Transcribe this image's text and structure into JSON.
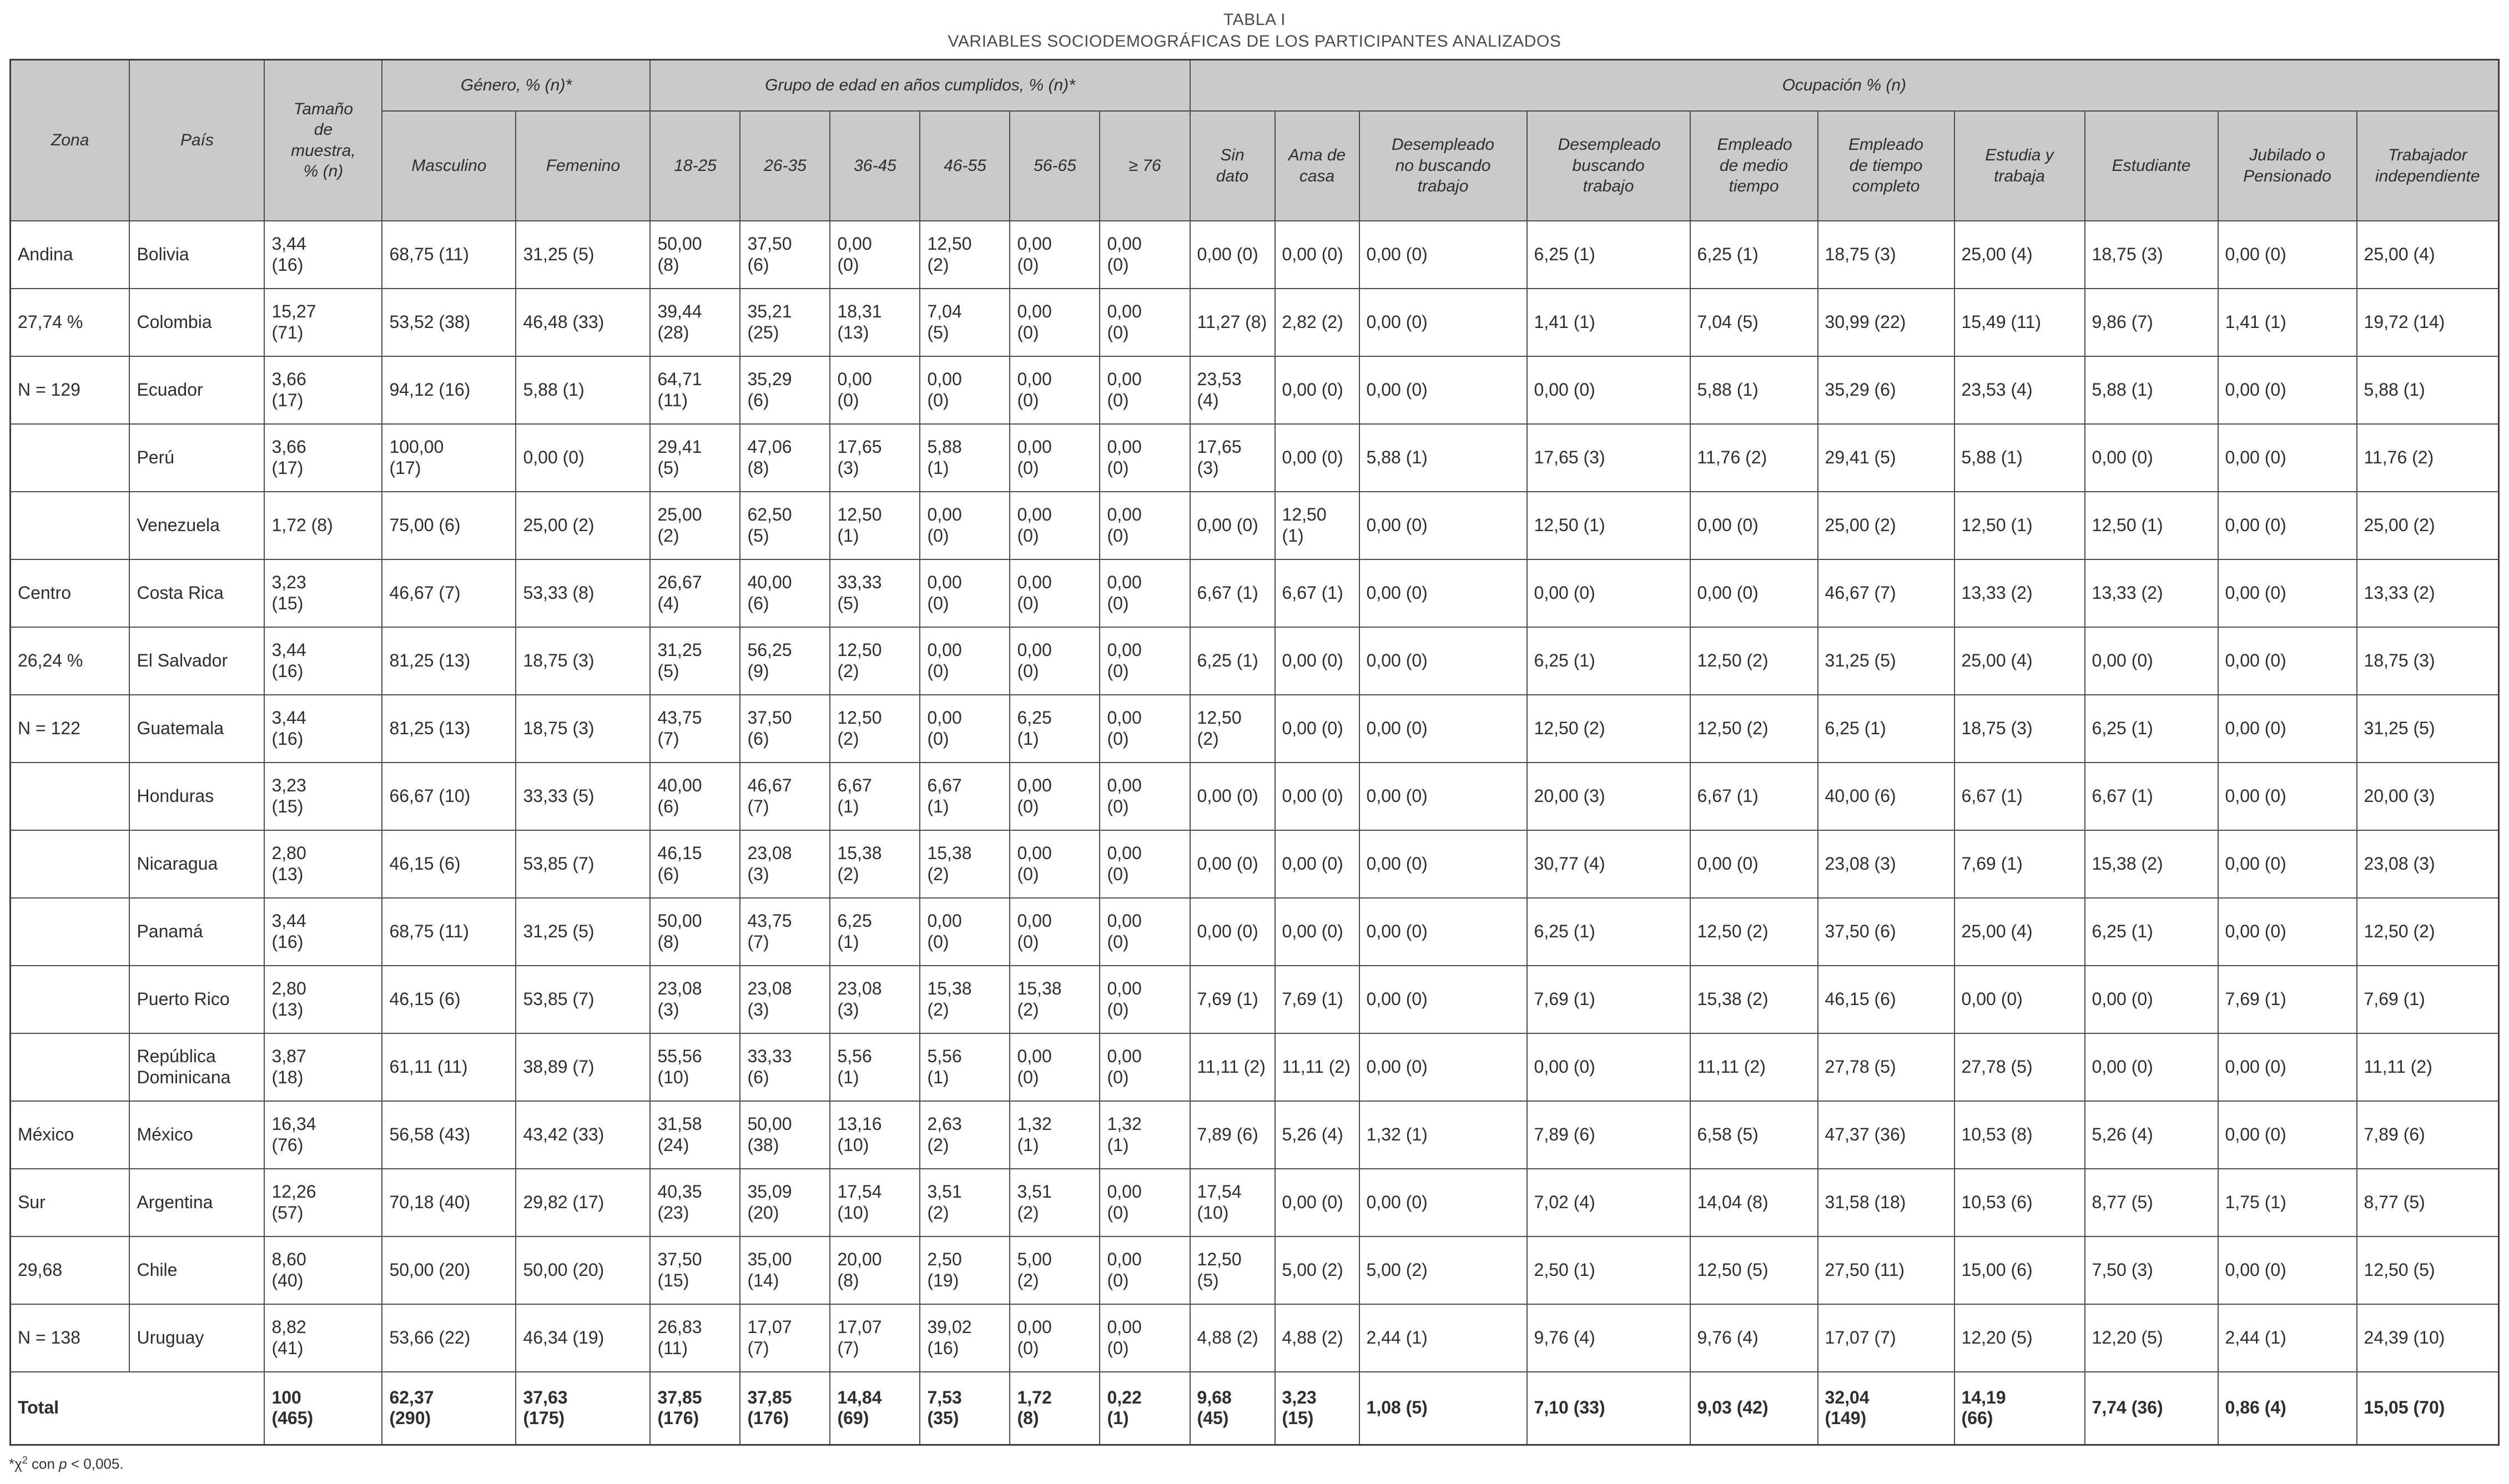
{
  "title": {
    "line1": "TABLA I",
    "line2": "VARIABLES SOCIODEMOGRÁFICAS DE LOS PARTICIPANTES ANALIZADOS"
  },
  "table": {
    "headers": {
      "zona": "Zona",
      "pais": "País",
      "tamano": "Tamaño de muestra, % (n)",
      "genero": "Género, % (n)*",
      "edad": "Grupo de edad en años cumplidos, % (n)*",
      "ocupacion": "Ocupación % (n)"
    },
    "subheaders": [
      "Masculino",
      "Femenino",
      "18-25",
      "26-35",
      "36-45",
      "46-55",
      "56-65",
      "≥ 76",
      "Sin dato",
      "Ama de casa",
      "Desempleado no buscando trabajo",
      "Desempleado buscando trabajo",
      "Empleado de medio tiempo",
      "Empleado de tiempo completo",
      "Estudia y trabaja",
      "Estudiante",
      "Jubilado o Pensionado",
      "Trabajador independiente"
    ],
    "rows": [
      {
        "zona": "Andina",
        "pais": "Bolivia",
        "values": [
          "3,44 (16)",
          "68,75 (11)",
          "31,25 (5)",
          "50,00 (8)",
          "37,50 (6)",
          "0,00 (0)",
          "12,50 (2)",
          "0,00 (0)",
          "0,00 (0)",
          "0,00 (0)",
          "0,00 (0)",
          "0,00 (0)",
          "6,25 (1)",
          "6,25 (1)",
          "18,75 (3)",
          "25,00 (4)",
          "18,75 (3)",
          "0,00 (0)",
          "25,00 (4)"
        ]
      },
      {
        "zona": "27,74 %",
        "pais": "Colombia",
        "values": [
          "15,27 (71)",
          "53,52 (38)",
          "46,48 (33)",
          "39,44 (28)",
          "35,21 (25)",
          "18,31 (13)",
          "7,04 (5)",
          "0,00 (0)",
          "0,00 (0)",
          "11,27 (8)",
          "2,82 (2)",
          "0,00 (0)",
          "1,41 (1)",
          "7,04 (5)",
          "30,99 (22)",
          "15,49 (11)",
          "9,86 (7)",
          "1,41 (1)",
          "19,72 (14)"
        ]
      },
      {
        "zona": "N = 129",
        "pais": "Ecuador",
        "values": [
          "3,66 (17)",
          "94,12 (16)",
          "5,88 (1)",
          "64,71 (11)",
          "35,29 (6)",
          "0,00 (0)",
          "0,00 (0)",
          "0,00 (0)",
          "0,00 (0)",
          "23,53 (4)",
          "0,00 (0)",
          "0,00 (0)",
          "0,00 (0)",
          "5,88 (1)",
          "35,29 (6)",
          "23,53 (4)",
          "5,88 (1)",
          "0,00 (0)",
          "5,88 (1)"
        ]
      },
      {
        "zona": "",
        "pais": "Perú",
        "values": [
          "3,66 (17)",
          "100,00 (17)",
          "0,00 (0)",
          "29,41 (5)",
          "47,06 (8)",
          "17,65 (3)",
          "5,88 (1)",
          "0,00 (0)",
          "0,00 (0)",
          "17,65 (3)",
          "0,00 (0)",
          "5,88 (1)",
          "17,65 (3)",
          "11,76 (2)",
          "29,41 (5)",
          "5,88 (1)",
          "0,00 (0)",
          "0,00 (0)",
          "11,76 (2)"
        ]
      },
      {
        "zona": "",
        "pais": "Venezuela",
        "values": [
          "1,72 (8)",
          "75,00 (6)",
          "25,00 (2)",
          "25,00 (2)",
          "62,50 (5)",
          "12,50 (1)",
          "0,00 (0)",
          "0,00 (0)",
          "0,00 (0)",
          "0,00 (0)",
          "12,50 (1)",
          "0,00 (0)",
          "12,50 (1)",
          "0,00 (0)",
          "25,00 (2)",
          "12,50 (1)",
          "12,50 (1)",
          "0,00 (0)",
          "25,00 (2)"
        ]
      },
      {
        "zona": "Centro",
        "pais": "Costa Rica",
        "values": [
          "3,23 (15)",
          "46,67 (7)",
          "53,33 (8)",
          "26,67 (4)",
          "40,00 (6)",
          "33,33 (5)",
          "0,00 (0)",
          "0,00 (0)",
          "0,00 (0)",
          "6,67 (1)",
          "6,67 (1)",
          "0,00 (0)",
          "0,00 (0)",
          "0,00 (0)",
          "46,67 (7)",
          "13,33 (2)",
          "13,33 (2)",
          "0,00 (0)",
          "13,33 (2)"
        ]
      },
      {
        "zona": "26,24 %",
        "pais": "El Salvador",
        "values": [
          "3,44 (16)",
          "81,25 (13)",
          "18,75 (3)",
          "31,25 (5)",
          "56,25 (9)",
          "12,50 (2)",
          "0,00 (0)",
          "0,00 (0)",
          "0,00 (0)",
          "6,25 (1)",
          "0,00 (0)",
          "0,00 (0)",
          "6,25 (1)",
          "12,50 (2)",
          "31,25 (5)",
          "25,00 (4)",
          "0,00 (0)",
          "0,00 (0)",
          "18,75 (3)"
        ]
      },
      {
        "zona": "N = 122",
        "pais": "Guatemala",
        "values": [
          "3,44 (16)",
          "81,25 (13)",
          "18,75 (3)",
          "43,75 (7)",
          "37,50 (6)",
          "12,50 (2)",
          "0,00 (0)",
          "6,25 (1)",
          "0,00 (0)",
          "12,50 (2)",
          "0,00 (0)",
          "0,00 (0)",
          "12,50 (2)",
          "12,50 (2)",
          "6,25 (1)",
          "18,75 (3)",
          "6,25 (1)",
          "0,00 (0)",
          "31,25 (5)"
        ]
      },
      {
        "zona": "",
        "pais": "Honduras",
        "values": [
          "3,23 (15)",
          "66,67 (10)",
          "33,33 (5)",
          "40,00 (6)",
          "46,67 (7)",
          "6,67 (1)",
          "6,67 (1)",
          "0,00 (0)",
          "0,00 (0)",
          "0,00 (0)",
          "0,00 (0)",
          "0,00 (0)",
          "20,00 (3)",
          "6,67 (1)",
          "40,00 (6)",
          "6,67 (1)",
          "6,67 (1)",
          "0,00 (0)",
          "20,00 (3)"
        ]
      },
      {
        "zona": "",
        "pais": "Nicaragua",
        "values": [
          "2,80 (13)",
          "46,15 (6)",
          "53,85 (7)",
          "46,15 (6)",
          "23,08 (3)",
          "15,38 (2)",
          "15,38 (2)",
          "0,00 (0)",
          "0,00 (0)",
          "0,00 (0)",
          "0,00 (0)",
          "0,00 (0)",
          "30,77 (4)",
          "0,00 (0)",
          "23,08 (3)",
          "7,69 (1)",
          "15,38 (2)",
          "0,00 (0)",
          "23,08 (3)"
        ]
      },
      {
        "zona": "",
        "pais": "Panamá",
        "values": [
          "3,44 (16)",
          "68,75 (11)",
          "31,25 (5)",
          "50,00 (8)",
          "43,75 (7)",
          "6,25 (1)",
          "0,00 (0)",
          "0,00 (0)",
          "0,00 (0)",
          "0,00 (0)",
          "0,00 (0)",
          "0,00 (0)",
          "6,25 (1)",
          "12,50 (2)",
          "37,50 (6)",
          "25,00 (4)",
          "6,25 (1)",
          "0,00 (0)",
          "12,50 (2)"
        ]
      },
      {
        "zona": "",
        "pais": "Puerto Rico",
        "values": [
          "2,80 (13)",
          "46,15 (6)",
          "53,85 (7)",
          "23,08 (3)",
          "23,08 (3)",
          "23,08 (3)",
          "15,38 (2)",
          "15,38 (2)",
          "0,00 (0)",
          "7,69 (1)",
          "7,69 (1)",
          "0,00 (0)",
          "7,69 (1)",
          "15,38 (2)",
          "46,15 (6)",
          "0,00 (0)",
          "0,00 (0)",
          "7,69 (1)",
          "7,69 (1)"
        ]
      },
      {
        "zona": "",
        "pais": "República Dominicana",
        "values": [
          "3,87 (18)",
          "61,11 (11)",
          "38,89 (7)",
          "55,56 (10)",
          "33,33 (6)",
          "5,56 (1)",
          "5,56 (1)",
          "0,00 (0)",
          "0,00 (0)",
          "11,11 (2)",
          "11,11 (2)",
          "0,00 (0)",
          "0,00 (0)",
          "11,11 (2)",
          "27,78 (5)",
          "27,78 (5)",
          "0,00 (0)",
          "0,00 (0)",
          "11,11 (2)"
        ]
      },
      {
        "zona": "México",
        "pais": "México",
        "values": [
          "16,34 (76)",
          "56,58 (43)",
          "43,42 (33)",
          "31,58 (24)",
          "50,00 (38)",
          "13,16 (10)",
          "2,63 (2)",
          "1,32 (1)",
          "1,32 (1)",
          "7,89 (6)",
          "5,26 (4)",
          "1,32 (1)",
          "7,89 (6)",
          "6,58 (5)",
          "47,37 (36)",
          "10,53 (8)",
          "5,26 (4)",
          "0,00 (0)",
          "7,89 (6)"
        ]
      },
      {
        "zona": "Sur",
        "pais": "Argentina",
        "values": [
          "12,26 (57)",
          "70,18 (40)",
          "29,82 (17)",
          "40,35 (23)",
          "35,09 (20)",
          "17,54 (10)",
          "3,51 (2)",
          "3,51 (2)",
          "0,00 (0)",
          "17,54 (10)",
          "0,00 (0)",
          "0,00 (0)",
          "7,02 (4)",
          "14,04 (8)",
          "31,58 (18)",
          "10,53 (6)",
          "8,77 (5)",
          "1,75 (1)",
          "8,77 (5)"
        ]
      },
      {
        "zona": "29,68",
        "pais": "Chile",
        "values": [
          "8,60 (40)",
          "50,00 (20)",
          "50,00 (20)",
          "37,50 (15)",
          "35,00 (14)",
          "20,00 (8)",
          "2,50 (19)",
          "5,00 (2)",
          "0,00 (0)",
          "12,50 (5)",
          "5,00 (2)",
          "5,00 (2)",
          "2,50 (1)",
          "12,50 (5)",
          "27,50 (11)",
          "15,00 (6)",
          "7,50 (3)",
          "0,00 (0)",
          "12,50 (5)"
        ]
      },
      {
        "zona": "N = 138",
        "pais": "Uruguay",
        "values": [
          "8,82 (41)",
          "53,66 (22)",
          "46,34 (19)",
          "26,83 (11)",
          "17,07 (7)",
          "17,07 (7)",
          "39,02 (16)",
          "0,00 (0)",
          "0,00 (0)",
          "4,88 (2)",
          "4,88 (2)",
          "2,44 (1)",
          "9,76 (4)",
          "9,76 (4)",
          "17,07 (7)",
          "12,20 (5)",
          "12,20 (5)",
          "2,44 (1)",
          "24,39 (10)"
        ]
      }
    ],
    "total": {
      "label": "Total",
      "values": [
        "100 (465)",
        "62,37 (290)",
        "37,63 (175)",
        "37,85 (176)",
        "37,85 (176)",
        "14,84 (69)",
        "7,53 (35)",
        "1,72 (8)",
        "0,22 (1)",
        "9,68 (45)",
        "3,23 (15)",
        "1,08 (5)",
        "7,10 (33)",
        "9,03 (42)",
        "32,04 (149)",
        "14,19 (66)",
        "7,74 (36)",
        "0,86 (4)",
        "15,05 (70)"
      ]
    }
  },
  "footnote": {
    "chi": "*χ",
    "sup": "2",
    "mid": " con ",
    "p_var": "p",
    "end": " < 0,005."
  }
}
